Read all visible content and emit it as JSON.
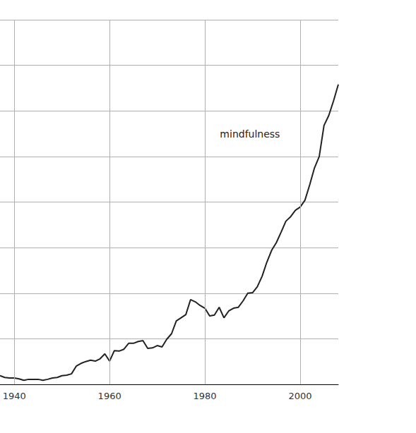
{
  "chart_data": {
    "type": "line",
    "x": [
      1937,
      1938,
      1939,
      1940,
      1941,
      1942,
      1943,
      1944,
      1945,
      1946,
      1947,
      1948,
      1949,
      1950,
      1951,
      1952,
      1953,
      1954,
      1955,
      1956,
      1957,
      1958,
      1959,
      1960,
      1961,
      1962,
      1963,
      1964,
      1965,
      1966,
      1967,
      1968,
      1969,
      1970,
      1971,
      1972,
      1973,
      1974,
      1975,
      1976,
      1977,
      1978,
      1979,
      1980,
      1981,
      1982,
      1983,
      1984,
      1985,
      1986,
      1987,
      1988,
      1989,
      1990,
      1991,
      1992,
      1993,
      1994,
      1995,
      1996,
      1997,
      1998,
      1999,
      2000,
      2001,
      2002,
      2003,
      2004,
      2005,
      2006,
      2007,
      2008
    ],
    "series": [
      {
        "name": "mindfulness",
        "color": "#222222",
        "values": [
          0.19,
          0.15,
          0.14,
          0.14,
          0.12,
          0.09,
          0.11,
          0.11,
          0.11,
          0.09,
          0.11,
          0.14,
          0.15,
          0.19,
          0.2,
          0.23,
          0.4,
          0.46,
          0.5,
          0.53,
          0.51,
          0.56,
          0.67,
          0.51,
          0.74,
          0.73,
          0.77,
          0.9,
          0.9,
          0.94,
          0.96,
          0.79,
          0.8,
          0.85,
          0.82,
          0.99,
          1.11,
          1.39,
          1.46,
          1.53,
          1.86,
          1.81,
          1.73,
          1.67,
          1.5,
          1.52,
          1.69,
          1.46,
          1.61,
          1.67,
          1.69,
          1.83,
          2.0,
          2.01,
          2.14,
          2.37,
          2.68,
          2.94,
          3.11,
          3.34,
          3.58,
          3.68,
          3.82,
          3.89,
          4.04,
          4.38,
          4.75,
          5.0,
          5.68,
          5.9,
          6.22,
          6.58
        ]
      }
    ],
    "xlim": [
      1937,
      2008
    ],
    "xticks": [
      1940,
      1960,
      1980,
      2000
    ],
    "ylim": [
      0,
      8
    ],
    "yticks": [
      0,
      1,
      2,
      3,
      4,
      5,
      6,
      7,
      8
    ],
    "grid": true,
    "tick_labels": "x"
  }
}
